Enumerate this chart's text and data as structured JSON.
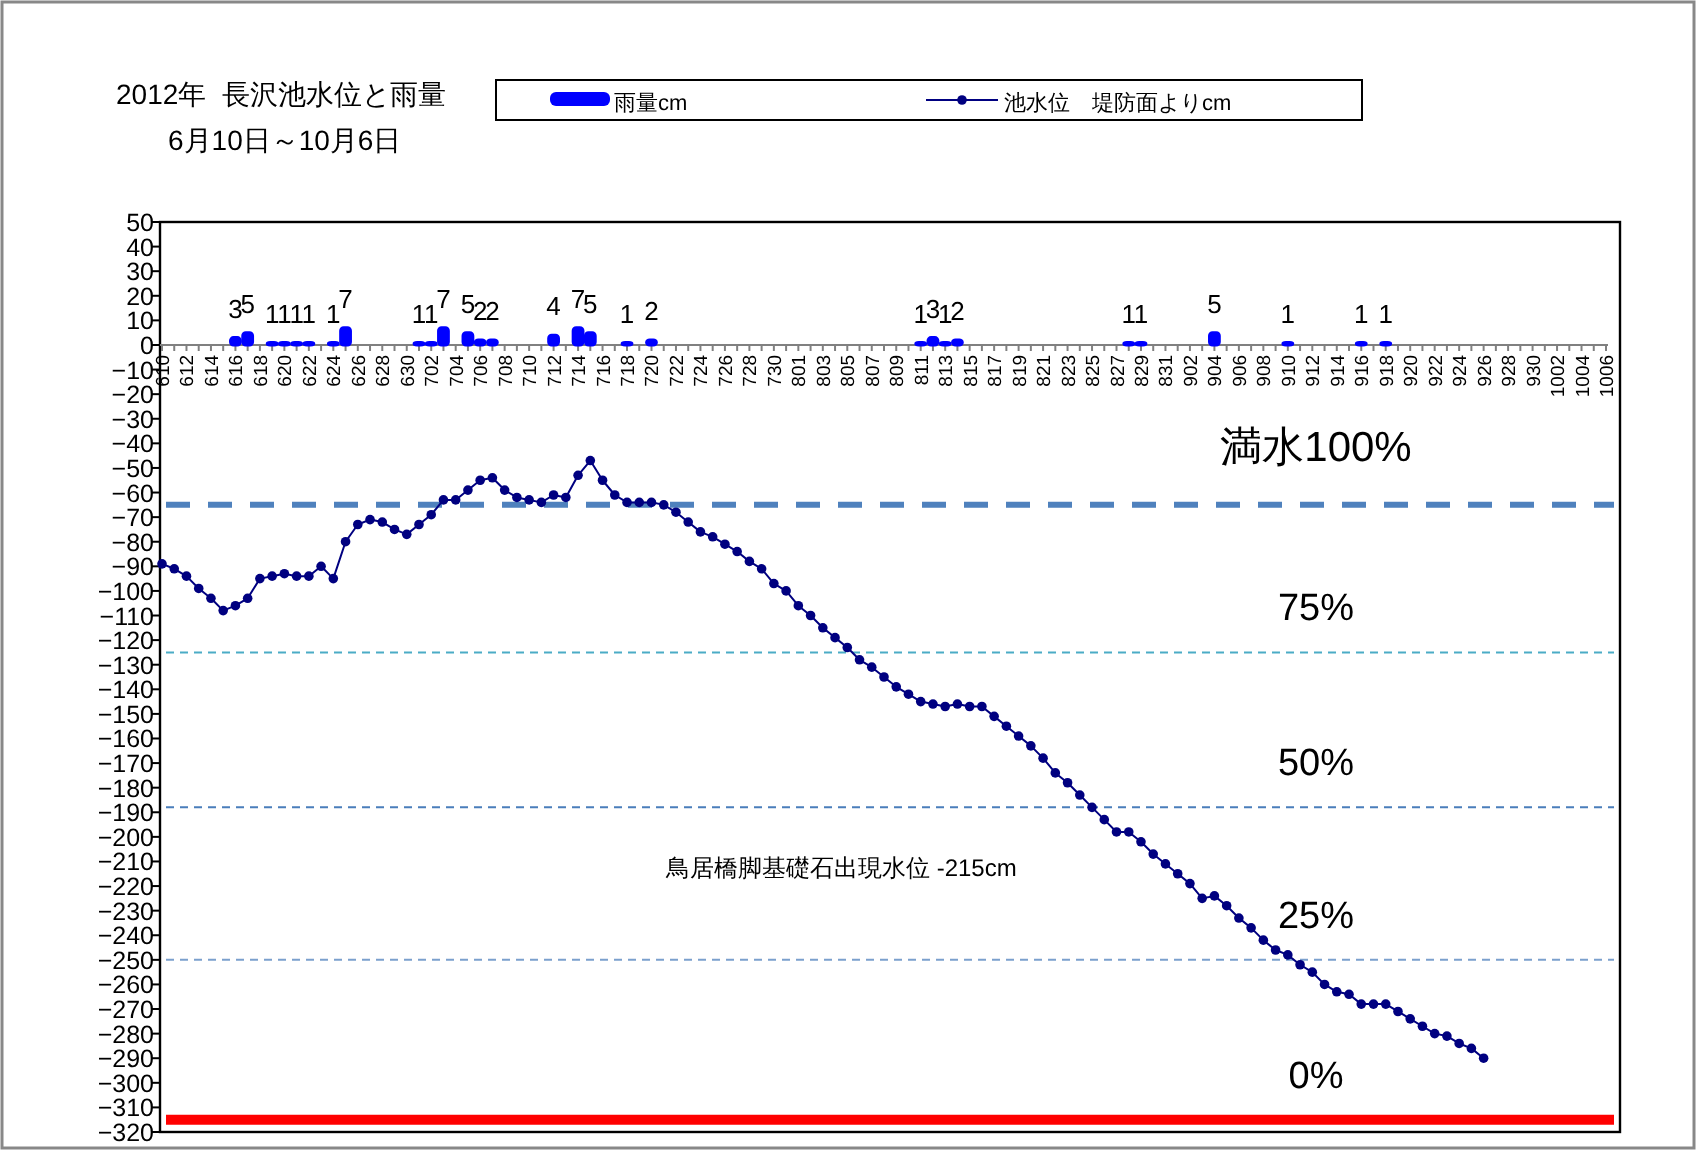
{
  "chart_data": {
    "type": "bar",
    "title": "2012年  長沢池水位と雨量",
    "subtitle": "6月10日～10月6日",
    "legend": "top",
    "marker": "circle",
    "categories": [
      "610",
      null,
      "612",
      null,
      "614",
      null,
      "616",
      null,
      "618",
      null,
      "620",
      null,
      "622",
      null,
      "624",
      null,
      "626",
      null,
      "628",
      null,
      "630",
      null,
      "702",
      null,
      "704",
      null,
      "706",
      null,
      "708",
      null,
      "710",
      null,
      "712",
      null,
      "714",
      null,
      "716",
      null,
      "718",
      null,
      "720",
      null,
      "722",
      null,
      "724",
      null,
      "726",
      null,
      "728",
      null,
      "730",
      null,
      "801",
      null,
      "803",
      null,
      "805",
      null,
      "807",
      null,
      "809",
      null,
      "811",
      null,
      "813",
      null,
      "815",
      null,
      "817",
      null,
      "819",
      null,
      "821",
      null,
      "823",
      null,
      "825",
      null,
      "827",
      null,
      "829",
      null,
      "831",
      null,
      "902",
      null,
      "904",
      null,
      "906",
      null,
      "908",
      null,
      "910",
      null,
      "912",
      null,
      "914",
      null,
      "916",
      null,
      "918",
      null,
      "920",
      null,
      "922",
      null,
      "924",
      null,
      "926",
      null,
      "928",
      null,
      "930",
      null,
      "1002",
      null,
      "1004",
      null,
      "1006"
    ],
    "series": [
      {
        "name": "雨量cm",
        "color": "#0000ff",
        "values": [
          null,
          null,
          null,
          null,
          null,
          null,
          3,
          5,
          null,
          1,
          1,
          1,
          1,
          null,
          1,
          7,
          null,
          null,
          null,
          null,
          null,
          1,
          1,
          7,
          null,
          5,
          2,
          2,
          null,
          null,
          null,
          null,
          4,
          null,
          7,
          5,
          null,
          null,
          1,
          null,
          2,
          null,
          null,
          null,
          null,
          null,
          null,
          null,
          null,
          null,
          null,
          null,
          null,
          null,
          null,
          null,
          null,
          null,
          null,
          null,
          null,
          null,
          1,
          3,
          1,
          2,
          null,
          null,
          null,
          null,
          null,
          null,
          null,
          null,
          null,
          null,
          null,
          null,
          null,
          1,
          1,
          null,
          null,
          null,
          null,
          null,
          5,
          null,
          null,
          null,
          null,
          null,
          1,
          null,
          null,
          null,
          null,
          null,
          1,
          null,
          1,
          null,
          null,
          null,
          null,
          null,
          null,
          null,
          null,
          null,
          null,
          null,
          null,
          null,
          null,
          null,
          null,
          null,
          null
        ],
        "value_labels": [
          null,
          null,
          null,
          null,
          null,
          null,
          "3",
          "5",
          null,
          "1",
          "1",
          "1",
          "1",
          null,
          "1",
          "7",
          null,
          null,
          null,
          null,
          null,
          "1",
          "1",
          "7",
          null,
          "5",
          "2",
          "2",
          null,
          null,
          null,
          null,
          "4",
          null,
          "7",
          "5",
          null,
          null,
          "1",
          null,
          "2",
          null,
          null,
          null,
          null,
          null,
          null,
          null,
          null,
          null,
          null,
          null,
          null,
          null,
          null,
          null,
          null,
          null,
          null,
          null,
          null,
          null,
          "1",
          "3",
          "1",
          "2",
          null,
          null,
          null,
          null,
          null,
          null,
          null,
          null,
          null,
          null,
          null,
          null,
          null,
          "1",
          "1",
          null,
          null,
          null,
          null,
          null,
          "5",
          null,
          null,
          null,
          null,
          null,
          "1",
          null,
          null,
          null,
          null,
          null,
          "1",
          null,
          "1",
          null,
          null,
          null,
          null,
          null,
          null,
          null,
          null,
          null,
          null,
          null,
          null,
          null,
          null,
          null,
          null,
          null,
          null
        ]
      },
      {
        "name": "池水位　堤防面よりcm",
        "type": "line",
        "color": "#000080",
        "values": [
          -89,
          -91,
          -94,
          -99,
          -103,
          -108,
          -106,
          -103,
          -95,
          -94,
          -93,
          -94,
          -94,
          -90,
          -95,
          -80,
          -73,
          -71,
          -72,
          -75,
          -77,
          -73,
          -69,
          -63,
          -63,
          -59,
          -55,
          -54,
          -59,
          -62,
          -63,
          -64,
          -61,
          -62,
          -53,
          -47,
          -55,
          -61,
          -64,
          -64,
          -64,
          -65,
          -68,
          -72,
          -76,
          -78,
          -81,
          -84,
          -88,
          -91,
          -97,
          -100,
          -106,
          -110,
          -115,
          -119,
          -123,
          -128,
          -131,
          -135,
          -139,
          -142,
          -145,
          -146,
          -147,
          -146,
          -147,
          -147,
          -151,
          -155,
          -159,
          -163,
          -168,
          -174,
          -178,
          -183,
          -188,
          -193,
          -198,
          -198,
          -202,
          -207,
          -211,
          -215,
          -219,
          -225,
          -224,
          -228,
          -233,
          -237,
          -242,
          -246,
          -248,
          -252,
          -255,
          -260,
          -263,
          -264,
          -268,
          -268,
          -268,
          -271,
          -274,
          -277,
          -280,
          -281,
          -284,
          -286,
          -290,
          null,
          null,
          null,
          null,
          null,
          null,
          null,
          null,
          null,
          null
        ]
      }
    ],
    "ylim": [
      -320,
      50
    ],
    "yticks": [
      50,
      40,
      30,
      20,
      10,
      0,
      -10,
      -20,
      -30,
      -40,
      -50,
      -60,
      -70,
      -80,
      -90,
      -100,
      -110,
      -120,
      -130,
      -140,
      -150,
      -160,
      -170,
      -180,
      -190,
      -200,
      -210,
      -220,
      -230,
      -240,
      -250,
      -260,
      -270,
      -280,
      -290,
      -300,
      -310,
      -320
    ],
    "ref_lines": [
      {
        "axis": "y",
        "value": -65,
        "color": "#4f81bd",
        "line_style": "dashed"
      },
      {
        "axis": "y",
        "value": -125,
        "color": "#4bacc6",
        "line_style": "dashed"
      },
      {
        "axis": "y",
        "value": -188,
        "color": "#4a7ebb",
        "line_style": "dashed"
      },
      {
        "axis": "y",
        "value": -250,
        "color": "#7ba0cd",
        "line_style": "dashed"
      },
      {
        "axis": "y",
        "value": -315,
        "color": "#ff0000",
        "line_style": "solid"
      }
    ],
    "annotations": [
      "満水100%",
      "75%",
      "50%",
      "25%",
      "0%",
      "鳥居橋脚基礎石出現水位 -215cm"
    ]
  }
}
